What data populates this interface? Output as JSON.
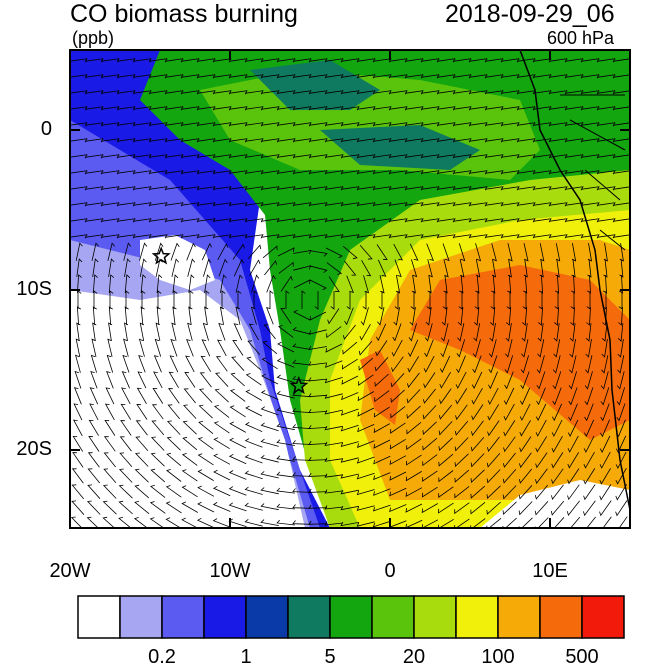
{
  "header": {
    "title": "CO biomass burning",
    "units": "(ppb)",
    "datetime": "2018-09-29_06",
    "level": "600 hPa"
  },
  "axes": {
    "lat_labels": [
      "0",
      "10S",
      "20S"
    ],
    "lon_labels": [
      "20W",
      "10W",
      "0",
      "10E"
    ]
  },
  "markers": [
    {
      "name": "star-west",
      "lon": -14.3,
      "lat": -7.9
    },
    {
      "name": "star-south",
      "lon": -5.7,
      "lat": -16.0
    }
  ],
  "colorbar": {
    "colors": [
      "#ffffff",
      "#a6a6f2",
      "#5b5bf2",
      "#1a1ae6",
      "#0a3aa8",
      "#0f7a5f",
      "#13a60f",
      "#5ac40c",
      "#a9dc0c",
      "#f0f00a",
      "#f5aa08",
      "#f56a0a",
      "#f21a0a"
    ],
    "labels": [
      "0.2",
      "1",
      "5",
      "20",
      "100",
      "500"
    ]
  }
}
